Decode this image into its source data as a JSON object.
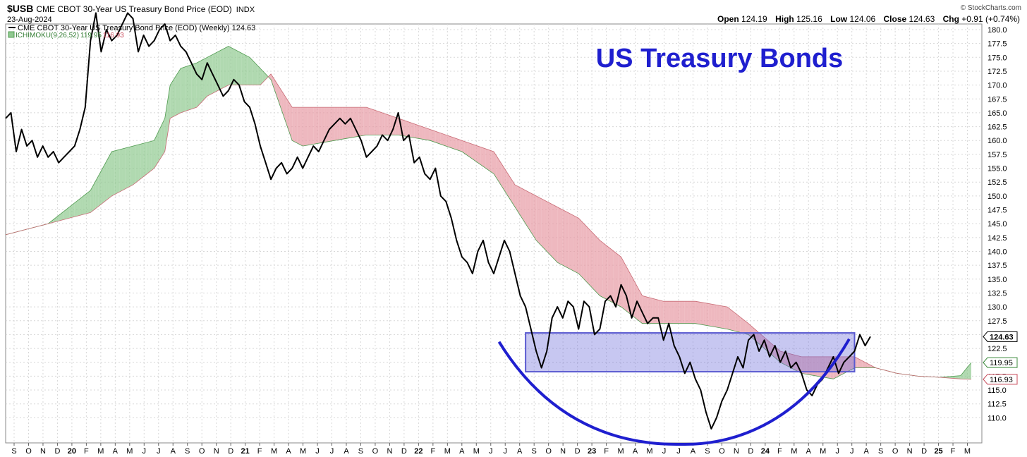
{
  "header": {
    "symbol": "$USB",
    "description": "CME CBOT 30-Year US Treasury Bond Price (EOD)",
    "exchange": "INDX",
    "date": "23-Aug-2024",
    "brand": "© StockCharts.com",
    "open_label": "Open",
    "open": "124.19",
    "high_label": "High",
    "high": "125.16",
    "low_label": "Low",
    "low": "124.06",
    "close_label": "Close",
    "close": "124.63",
    "chg_label": "Chg",
    "chg": "+0.91 (+0.74%)"
  },
  "legend": {
    "price": "CME CBOT 30-Year US Treasury Bond Price (EOD) (Weekly) 124.63",
    "ichimoku_name": "ICHIMOKU(9,26,52)",
    "ichimoku_a": "119.95",
    "ichimoku_b": "116.93"
  },
  "annotation_title": "US Treasury Bonds",
  "colors": {
    "price": "#000000",
    "cloud_bull": "#8fc98f",
    "cloud_bear": "#e79aa4",
    "range_box": "#6b6bd9",
    "cup": "#1f1fcf",
    "title": "#1f1fcf",
    "grid": "#d8d8d8"
  },
  "chart_data": {
    "type": "line",
    "title": "US Treasury Bonds",
    "y_ticks": [
      "180.0",
      "177.5",
      "175.0",
      "172.5",
      "170.0",
      "167.5",
      "165.0",
      "162.5",
      "160.0",
      "157.5",
      "155.0",
      "152.5",
      "150.0",
      "147.5",
      "145.0",
      "142.5",
      "140.0",
      "137.5",
      "135.0",
      "132.5",
      "130.0",
      "127.5",
      "125.0",
      "122.5",
      "120.0",
      "117.5",
      "115.0",
      "112.5",
      "110.0"
    ],
    "ylim": [
      107.5,
      180.0
    ],
    "x_labels": [
      "S",
      "O",
      "N",
      "D",
      "20",
      "F",
      "M",
      "A",
      "M",
      "J",
      "J",
      "A",
      "S",
      "O",
      "N",
      "D",
      "21",
      "F",
      "M",
      "A",
      "M",
      "J",
      "J",
      "A",
      "S",
      "O",
      "N",
      "D",
      "22",
      "F",
      "M",
      "A",
      "M",
      "J",
      "J",
      "A",
      "S",
      "O",
      "N",
      "D",
      "23",
      "F",
      "M",
      "A",
      "M",
      "J",
      "J",
      "A",
      "S",
      "O",
      "N",
      "D",
      "24",
      "F",
      "M",
      "A",
      "M",
      "J",
      "J",
      "A",
      "S",
      "O",
      "N",
      "D",
      "25",
      "F",
      "M"
    ],
    "price_tags": [
      {
        "value": 124.63,
        "label": "124.63"
      },
      {
        "value": 119.95,
        "label": "119.95"
      },
      {
        "value": 116.93,
        "label": "116.93"
      }
    ],
    "series": [
      {
        "name": "CME CBOT 30-Year US Treasury Bond Price (EOD) (Weekly)",
        "kind": "price",
        "values": [
          [
            0,
            164
          ],
          [
            1,
            165
          ],
          [
            2,
            158
          ],
          [
            3,
            162
          ],
          [
            4,
            159
          ],
          [
            5,
            160
          ],
          [
            6,
            157
          ],
          [
            7,
            159
          ],
          [
            8,
            157
          ],
          [
            9,
            158
          ],
          [
            10,
            156
          ],
          [
            11,
            157
          ],
          [
            12,
            158
          ],
          [
            13,
            159
          ],
          [
            14,
            162
          ],
          [
            15,
            166
          ],
          [
            16,
            178
          ],
          [
            17,
            183
          ],
          [
            18,
            176
          ],
          [
            19,
            180
          ],
          [
            20,
            178
          ],
          [
            21,
            179
          ],
          [
            22,
            181
          ],
          [
            23,
            183
          ],
          [
            24,
            182
          ],
          [
            25,
            176
          ],
          [
            26,
            179
          ],
          [
            27,
            177
          ],
          [
            28,
            178
          ],
          [
            29,
            180
          ],
          [
            30,
            181
          ],
          [
            31,
            178
          ],
          [
            32,
            179
          ],
          [
            33,
            177
          ],
          [
            34,
            176
          ],
          [
            35,
            174
          ],
          [
            36,
            172
          ],
          [
            37,
            171
          ],
          [
            38,
            174
          ],
          [
            39,
            172
          ],
          [
            40,
            170
          ],
          [
            41,
            168
          ],
          [
            42,
            169
          ],
          [
            43,
            171
          ],
          [
            44,
            170
          ],
          [
            45,
            167
          ],
          [
            46,
            166
          ],
          [
            47,
            163
          ],
          [
            48,
            159
          ],
          [
            49,
            156
          ],
          [
            50,
            153
          ],
          [
            51,
            155
          ],
          [
            52,
            156
          ],
          [
            53,
            154
          ],
          [
            54,
            155
          ],
          [
            55,
            157
          ],
          [
            56,
            155
          ],
          [
            57,
            157
          ],
          [
            58,
            159
          ],
          [
            59,
            158
          ],
          [
            60,
            160
          ],
          [
            61,
            162
          ],
          [
            62,
            163
          ],
          [
            63,
            164
          ],
          [
            64,
            163
          ],
          [
            65,
            164
          ],
          [
            66,
            162
          ],
          [
            67,
            160
          ],
          [
            68,
            157
          ],
          [
            69,
            158
          ],
          [
            70,
            159
          ],
          [
            71,
            161
          ],
          [
            72,
            160
          ],
          [
            73,
            162
          ],
          [
            74,
            165
          ],
          [
            75,
            160
          ],
          [
            76,
            161
          ],
          [
            77,
            156
          ],
          [
            78,
            157
          ],
          [
            79,
            154
          ],
          [
            80,
            153
          ],
          [
            81,
            155
          ],
          [
            82,
            150
          ],
          [
            83,
            149
          ],
          [
            84,
            146
          ],
          [
            85,
            142
          ],
          [
            86,
            139
          ],
          [
            87,
            138
          ],
          [
            88,
            136
          ],
          [
            89,
            140
          ],
          [
            90,
            142
          ],
          [
            91,
            138
          ],
          [
            92,
            136
          ],
          [
            93,
            139
          ],
          [
            94,
            142
          ],
          [
            95,
            140
          ],
          [
            96,
            136
          ],
          [
            97,
            132
          ],
          [
            98,
            130
          ],
          [
            99,
            126
          ],
          [
            100,
            122
          ],
          [
            101,
            119
          ],
          [
            102,
            122
          ],
          [
            103,
            128
          ],
          [
            104,
            130
          ],
          [
            105,
            128
          ],
          [
            106,
            131
          ],
          [
            107,
            130
          ],
          [
            108,
            126
          ],
          [
            109,
            131
          ],
          [
            110,
            130
          ],
          [
            111,
            125
          ],
          [
            112,
            126
          ],
          [
            113,
            131
          ],
          [
            114,
            132
          ],
          [
            115,
            130
          ],
          [
            116,
            134
          ],
          [
            117,
            132
          ],
          [
            118,
            128
          ],
          [
            119,
            131
          ],
          [
            120,
            129
          ],
          [
            121,
            127
          ],
          [
            122,
            128
          ],
          [
            123,
            128
          ],
          [
            124,
            124
          ],
          [
            125,
            127
          ],
          [
            126,
            123
          ],
          [
            127,
            121
          ],
          [
            128,
            118
          ],
          [
            129,
            120
          ],
          [
            130,
            117
          ],
          [
            131,
            115
          ],
          [
            132,
            111
          ],
          [
            133,
            108
          ],
          [
            134,
            110
          ],
          [
            135,
            113
          ],
          [
            136,
            115
          ],
          [
            137,
            118
          ],
          [
            138,
            121
          ],
          [
            139,
            119
          ],
          [
            140,
            124
          ],
          [
            141,
            125
          ],
          [
            142,
            122
          ],
          [
            143,
            124
          ],
          [
            144,
            121
          ],
          [
            145,
            123
          ],
          [
            146,
            120
          ],
          [
            147,
            122
          ],
          [
            148,
            119
          ],
          [
            149,
            120
          ],
          [
            150,
            118
          ],
          [
            151,
            115
          ],
          [
            152,
            114
          ],
          [
            153,
            116
          ],
          [
            154,
            117
          ],
          [
            155,
            119
          ],
          [
            156,
            121
          ],
          [
            157,
            118
          ],
          [
            158,
            120
          ],
          [
            159,
            121
          ],
          [
            160,
            122
          ],
          [
            161,
            125
          ],
          [
            162,
            123
          ],
          [
            163,
            124.63
          ]
        ]
      },
      {
        "name": "ICHIMOKU(9,26,52) Span A",
        "kind": "span_a",
        "values": [
          [
            0,
            143
          ],
          [
            4,
            144
          ],
          [
            8,
            145
          ],
          [
            12,
            148
          ],
          [
            16,
            151
          ],
          [
            20,
            158
          ],
          [
            24,
            159
          ],
          [
            28,
            160
          ],
          [
            30,
            164
          ],
          [
            31,
            170
          ],
          [
            33,
            173
          ],
          [
            36,
            174
          ],
          [
            38,
            175
          ],
          [
            42,
            177
          ],
          [
            46,
            175
          ],
          [
            48,
            173
          ],
          [
            50,
            171
          ],
          [
            54,
            160
          ],
          [
            56,
            159
          ],
          [
            62,
            160
          ],
          [
            68,
            161
          ],
          [
            74,
            161
          ],
          [
            80,
            160
          ],
          [
            86,
            158
          ],
          [
            92,
            154
          ],
          [
            96,
            148
          ],
          [
            100,
            142
          ],
          [
            104,
            138
          ],
          [
            108,
            136
          ],
          [
            112,
            132
          ],
          [
            116,
            130
          ],
          [
            120,
            127
          ],
          [
            124,
            127
          ],
          [
            130,
            127
          ],
          [
            136,
            126
          ],
          [
            140,
            125
          ],
          [
            146,
            120
          ],
          [
            150,
            118
          ],
          [
            156,
            117
          ],
          [
            160,
            119
          ],
          [
            164,
            119
          ],
          [
            168,
            118
          ],
          [
            172,
            117.5
          ],
          [
            176,
            117.3
          ],
          [
            180,
            117.6
          ],
          [
            182,
            119.95
          ]
        ]
      },
      {
        "name": "ICHIMOKU(9,26,52) Span B",
        "kind": "span_b",
        "values": [
          [
            0,
            143
          ],
          [
            4,
            144
          ],
          [
            8,
            145
          ],
          [
            12,
            146
          ],
          [
            16,
            147
          ],
          [
            20,
            150
          ],
          [
            24,
            152
          ],
          [
            28,
            155
          ],
          [
            30,
            158
          ],
          [
            31,
            164
          ],
          [
            33,
            165
          ],
          [
            36,
            166
          ],
          [
            38,
            168
          ],
          [
            42,
            170
          ],
          [
            46,
            170
          ],
          [
            48,
            170
          ],
          [
            50,
            172
          ],
          [
            54,
            166
          ],
          [
            56,
            166
          ],
          [
            62,
            166
          ],
          [
            68,
            166
          ],
          [
            74,
            164
          ],
          [
            80,
            162
          ],
          [
            86,
            160
          ],
          [
            92,
            158
          ],
          [
            96,
            152
          ],
          [
            100,
            150
          ],
          [
            104,
            148
          ],
          [
            108,
            146
          ],
          [
            112,
            142
          ],
          [
            116,
            139
          ],
          [
            120,
            132
          ],
          [
            124,
            131
          ],
          [
            130,
            131
          ],
          [
            136,
            130
          ],
          [
            140,
            127
          ],
          [
            146,
            122
          ],
          [
            150,
            121
          ],
          [
            156,
            121
          ],
          [
            160,
            121
          ],
          [
            164,
            119
          ],
          [
            168,
            118
          ],
          [
            172,
            117.5
          ],
          [
            176,
            117.3
          ],
          [
            180,
            117
          ],
          [
            182,
            116.93
          ]
        ]
      }
    ],
    "annotations": [
      {
        "type": "range_box",
        "x_from": 98,
        "x_to": 160,
        "y_from": 118.3,
        "y_to": 125.3
      },
      {
        "type": "cup_curve",
        "x_from": 93,
        "x_bottom": 128,
        "y_bottom": 107.5,
        "x_to": 159,
        "y_to": 124.2
      }
    ]
  }
}
